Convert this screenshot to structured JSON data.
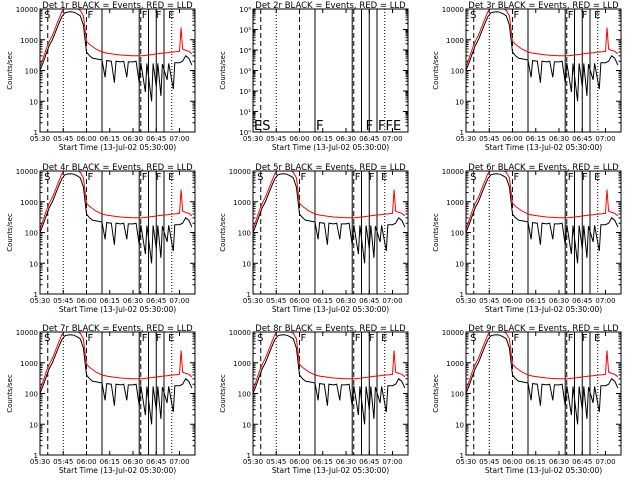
{
  "figure": {
    "common_ylabel": "Counts/sec",
    "common_xlabel": "Start Time (13-Jul-02 05:30:00)"
  },
  "chart_data": [
    {
      "type": "line",
      "title": "Det 1r BLACK = Events, RED = LLD",
      "ylabel": "Counts/sec",
      "xlabel": "Start Time (13-Jul-02 05:30:00)",
      "x_tick_labels": [
        "05:30",
        "05:45",
        "06:00",
        "06:15",
        "06:30",
        "06:45",
        "07:00"
      ],
      "y_tick_labels": [
        "1",
        "10",
        "100",
        "1000",
        "10000"
      ],
      "xlim": [
        "05:30",
        "07:10"
      ],
      "ylim": [
        1,
        10000
      ],
      "y_scale": "log",
      "has_data": true,
      "flag_labels": [
        "S",
        "F",
        "F",
        "F",
        "E"
      ]
    },
    {
      "type": "line",
      "title": "Det 2r BLACK = Events, RED = LLD",
      "ylabel": "Counts/sec",
      "xlabel": "Start Time (13-Jul-02 05:30:00)",
      "x_tick_labels": [
        "05:30",
        "05:45",
        "06:00",
        "06:15",
        "06:30",
        "06:45",
        "07:00"
      ],
      "y_tick_labels": [
        "10⁰",
        "10¹",
        "10²",
        "10³",
        "10⁴",
        "10⁵",
        "10⁶"
      ],
      "xlim": [
        "05:30",
        "07:10"
      ],
      "ylim": [
        1,
        1000000
      ],
      "y_scale": "log",
      "has_data": false,
      "flag_labels": [
        "ES",
        "F",
        "F",
        "FFE"
      ]
    },
    {
      "type": "line",
      "title": "Det 3r BLACK = Events, RED = LLD",
      "ylabel": "Counts/sec",
      "xlabel": "Start Time (13-Jul-02 05:30:00)",
      "x_tick_labels": [
        "05:30",
        "05:45",
        "06:00",
        "06:15",
        "06:30",
        "06:45",
        "07:00"
      ],
      "y_tick_labels": [
        "1",
        "10",
        "100",
        "1000",
        "10000"
      ],
      "xlim": [
        "05:30",
        "07:10"
      ],
      "ylim": [
        1,
        10000
      ],
      "y_scale": "log",
      "has_data": true,
      "flag_labels": [
        "S",
        "F",
        "F",
        "F",
        "E"
      ]
    },
    {
      "type": "line",
      "title": "Det 4r BLACK = Events, RED = LLD",
      "ylabel": "Counts/sec",
      "xlabel": "Start Time (13-Jul-02 05:30:00)",
      "x_tick_labels": [
        "05:30",
        "05:45",
        "06:00",
        "06:15",
        "06:30",
        "06:45",
        "07:00"
      ],
      "y_tick_labels": [
        "1",
        "10",
        "100",
        "1000",
        "10000"
      ],
      "xlim": [
        "05:30",
        "07:10"
      ],
      "ylim": [
        1,
        10000
      ],
      "y_scale": "log",
      "has_data": true,
      "flag_labels": [
        "S",
        "F",
        "F",
        "F",
        "E"
      ]
    },
    {
      "type": "line",
      "title": "Det 5r BLACK = Events, RED = LLD",
      "ylabel": "Counts/sec",
      "xlabel": "Start Time (13-Jul-02 05:30:00)",
      "x_tick_labels": [
        "05:30",
        "05:45",
        "06:00",
        "06:15",
        "06:30",
        "06:45",
        "07:00"
      ],
      "y_tick_labels": [
        "1",
        "10",
        "100",
        "1000",
        "10000"
      ],
      "xlim": [
        "05:30",
        "07:10"
      ],
      "ylim": [
        1,
        10000
      ],
      "y_scale": "log",
      "has_data": true,
      "flag_labels": [
        "S",
        "F",
        "F",
        "F",
        "E"
      ]
    },
    {
      "type": "line",
      "title": "Det 6r BLACK = Events, RED = LLD",
      "ylabel": "Counts/sec",
      "xlabel": "Start Time (13-Jul-02 05:30:00)",
      "x_tick_labels": [
        "05:30",
        "05:45",
        "06:00",
        "06:15",
        "06:30",
        "06:45",
        "07:00"
      ],
      "y_tick_labels": [
        "1",
        "10",
        "100",
        "1000",
        "10000"
      ],
      "xlim": [
        "05:30",
        "07:10"
      ],
      "ylim": [
        1,
        10000
      ],
      "y_scale": "log",
      "has_data": true,
      "flag_labels": [
        "S",
        "F",
        "F",
        "F",
        "E"
      ]
    },
    {
      "type": "line",
      "title": "Det 7r BLACK = Events, RED = LLD",
      "ylabel": "Counts/sec",
      "xlabel": "Start Time (13-Jul-02 05:30:00)",
      "x_tick_labels": [
        "05:30",
        "05:45",
        "06:00",
        "06:15",
        "06:30",
        "06:45",
        "07:00"
      ],
      "y_tick_labels": [
        "1",
        "10",
        "100",
        "1000",
        "10000"
      ],
      "xlim": [
        "05:30",
        "07:10"
      ],
      "ylim": [
        1,
        10000
      ],
      "y_scale": "log",
      "has_data": true,
      "flag_labels": [
        "S",
        "F",
        "F",
        "F",
        "E"
      ]
    },
    {
      "type": "line",
      "title": "Det 8r BLACK = Events, RED = LLD",
      "ylabel": "Counts/sec",
      "xlabel": "Start Time (13-Jul-02 05:30:00)",
      "x_tick_labels": [
        "05:30",
        "05:45",
        "06:00",
        "06:15",
        "06:30",
        "06:45",
        "07:00"
      ],
      "y_tick_labels": [
        "1",
        "10",
        "100",
        "1000",
        "10000"
      ],
      "xlim": [
        "05:30",
        "07:10"
      ],
      "ylim": [
        1,
        10000
      ],
      "y_scale": "log",
      "has_data": true,
      "flag_labels": [
        "S",
        "F",
        "F",
        "F",
        "E"
      ]
    },
    {
      "type": "line",
      "title": "Det 9r BLACK = Events, RED = LLD",
      "ylabel": "Counts/sec",
      "xlabel": "Start Time (13-Jul-02 05:30:00)",
      "x_tick_labels": [
        "05:30",
        "05:45",
        "06:00",
        "06:15",
        "06:30",
        "06:45",
        "07:00"
      ],
      "y_tick_labels": [
        "1",
        "10",
        "100",
        "1000",
        "10000"
      ],
      "xlim": [
        "05:30",
        "07:10"
      ],
      "ylim": [
        1,
        10000
      ],
      "y_scale": "log",
      "has_data": true,
      "flag_labels": [
        "S",
        "F",
        "F",
        "F",
        "E"
      ]
    }
  ],
  "series_style": {
    "events_color": "#000000",
    "lld_color": "#ff0000"
  },
  "red_series_lld": {
    "name": "LLD",
    "points": [
      [
        "05:30",
        130
      ],
      [
        "05:32",
        250
      ],
      [
        "05:34",
        500
      ],
      [
        "05:36",
        900
      ],
      [
        "05:38",
        1400
      ],
      [
        "05:40",
        2500
      ],
      [
        "05:42",
        4500
      ],
      [
        "05:44",
        8000
      ],
      [
        "05:46",
        11000
      ],
      [
        "05:48",
        12000
      ],
      [
        "05:50",
        12000
      ],
      [
        "05:52",
        11000
      ],
      [
        "05:54",
        10500
      ],
      [
        "05:56",
        9000
      ],
      [
        "05:58",
        6000
      ],
      [
        "06:00",
        900
      ],
      [
        "06:02",
        700
      ],
      [
        "06:04",
        600
      ],
      [
        "06:06",
        500
      ],
      [
        "06:08",
        450
      ],
      [
        "06:10",
        400
      ],
      [
        "06:12",
        380
      ],
      [
        "06:14",
        360
      ],
      [
        "06:16",
        350
      ],
      [
        "06:18",
        340
      ],
      [
        "06:20",
        330
      ],
      [
        "06:22",
        320
      ],
      [
        "06:24",
        315
      ],
      [
        "06:26",
        310
      ],
      [
        "06:28",
        305
      ],
      [
        "06:30",
        300
      ],
      [
        "06:32",
        300
      ],
      [
        "06:34",
        300
      ],
      [
        "06:36",
        300
      ],
      [
        "06:38",
        310
      ],
      [
        "06:40",
        320
      ],
      [
        "06:42",
        330
      ],
      [
        "06:44",
        340
      ],
      [
        "06:46",
        350
      ],
      [
        "06:48",
        360
      ],
      [
        "06:50",
        370
      ],
      [
        "06:52",
        380
      ],
      [
        "06:54",
        390
      ],
      [
        "06:56",
        400
      ],
      [
        "06:58",
        410
      ],
      [
        "07:00",
        420
      ],
      [
        "07:01",
        2500
      ],
      [
        "07:02",
        500
      ],
      [
        "07:04",
        450
      ],
      [
        "07:06",
        420
      ],
      [
        "07:08",
        350
      ]
    ]
  },
  "black_series_events": {
    "name": "Events",
    "points": [
      [
        "05:30",
        100
      ],
      [
        "05:32",
        180
      ],
      [
        "05:34",
        350
      ],
      [
        "05:36",
        650
      ],
      [
        "05:38",
        1000
      ],
      [
        "05:40",
        1800
      ],
      [
        "05:42",
        3200
      ],
      [
        "05:44",
        5500
      ],
      [
        "05:46",
        7500
      ],
      [
        "05:48",
        8000
      ],
      [
        "05:50",
        8200
      ],
      [
        "05:52",
        7800
      ],
      [
        "05:54",
        7000
      ],
      [
        "05:56",
        6000
      ],
      [
        "05:58",
        3000
      ],
      [
        "06:00",
        400
      ],
      [
        "06:02",
        300
      ],
      [
        "06:04",
        250
      ],
      [
        "06:06",
        240
      ],
      [
        "06:08",
        230
      ],
      [
        "06:10",
        220
      ],
      [
        "06:12",
        60
      ],
      [
        "06:13",
        210
      ],
      [
        "06:16",
        200
      ],
      [
        "06:18",
        40
      ],
      [
        "06:19",
        200
      ],
      [
        "06:22",
        190
      ],
      [
        "06:24",
        200
      ],
      [
        "06:26",
        60
      ],
      [
        "06:27",
        190
      ],
      [
        "06:30",
        190
      ],
      [
        "06:32",
        200
      ],
      [
        "06:34",
        40
      ],
      [
        "06:35",
        180
      ],
      [
        "06:38",
        20
      ],
      [
        "06:39",
        170
      ],
      [
        "06:42",
        10
      ],
      [
        "06:43",
        170
      ],
      [
        "06:45",
        30
      ],
      [
        "06:46",
        170
      ],
      [
        "06:48",
        15
      ],
      [
        "06:49",
        160
      ],
      [
        "06:52",
        50
      ],
      [
        "06:53",
        170
      ],
      [
        "06:56",
        25
      ],
      [
        "06:57",
        180
      ],
      [
        "07:00",
        180
      ],
      [
        "07:02",
        200
      ],
      [
        "07:04",
        300
      ],
      [
        "07:06",
        250
      ],
      [
        "07:08",
        150
      ]
    ]
  },
  "vertical_markers": {
    "solid": [
      "06:10",
      "06:34",
      "06:40",
      "06:45",
      "06:50"
    ],
    "dashed": [
      "05:35",
      "06:00",
      "06:35"
    ],
    "dotted": [
      "05:45",
      "06:55"
    ]
  }
}
